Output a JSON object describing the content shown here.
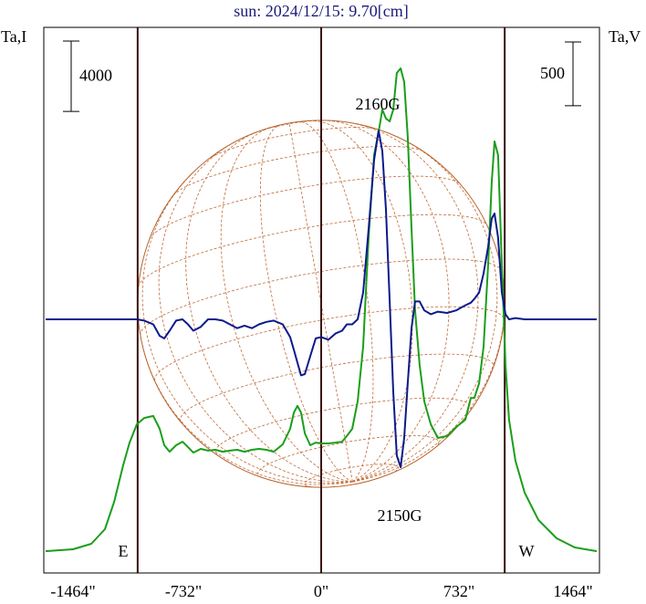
{
  "chart_data": {
    "type": "line",
    "title": "sun: 2024/12/15: 9.70[cm]",
    "x": [
      -1464,
      -1318,
      -1221,
      -1149,
      -1100,
      -1052,
      -1018,
      -979,
      -940,
      -892,
      -858,
      -834,
      -805,
      -771,
      -737,
      -708,
      -679,
      -640,
      -601,
      -562,
      -523,
      -485,
      -446,
      -407,
      -368,
      -330,
      -291,
      -252,
      -204,
      -165,
      -145,
      -126,
      -107,
      -87,
      -58,
      -29,
      0,
      39,
      78,
      111,
      136,
      165,
      194,
      223,
      252,
      281,
      305,
      325,
      344,
      364,
      383,
      402,
      422,
      441,
      460,
      480,
      499,
      523,
      548,
      582,
      620,
      669,
      717,
      766,
      795,
      814,
      839,
      863,
      887,
      906,
      921,
      940,
      960,
      979,
      998,
      1032,
      1081,
      1154,
      1251,
      1347,
      1464
    ],
    "series": [
      {
        "name": "Ta,I",
        "color": "#1a9e1a",
        "values": [
          240,
          350,
          660,
          1490,
          3040,
          5120,
          6410,
          7450,
          7810,
          7920,
          7190,
          6260,
          5890,
          6260,
          6460,
          6150,
          5840,
          6050,
          5950,
          6000,
          5890,
          5950,
          6000,
          5890,
          6000,
          6050,
          6000,
          5890,
          6310,
          7190,
          8120,
          8490,
          8120,
          6930,
          6260,
          6410,
          6360,
          6360,
          6410,
          6460,
          6780,
          7190,
          8750,
          11860,
          18080,
          22740,
          24040,
          25330,
          24820,
          24660,
          25330,
          27410,
          27670,
          26890,
          23780,
          18600,
          13930,
          10820,
          8750,
          7450,
          6670,
          6780,
          7290,
          7710,
          8950,
          8950,
          9780,
          11860,
          16520,
          21190,
          23520,
          22740,
          16520,
          10820,
          7710,
          5380,
          3560,
          2010,
          970,
          450,
          240
        ]
      },
      {
        "name": "Ta,V",
        "color": "#0c1a8c",
        "axis": "y2",
        "values": [
          0,
          0,
          0,
          0,
          0,
          0,
          0,
          0,
          -10,
          -40,
          -130,
          -150,
          -90,
          -10,
          0,
          -40,
          -90,
          -60,
          0,
          0,
          -10,
          -40,
          -70,
          -50,
          -70,
          -40,
          -20,
          -10,
          -40,
          -140,
          -240,
          -340,
          -440,
          -430,
          -290,
          -150,
          -140,
          -160,
          -110,
          -90,
          -40,
          -40,
          0,
          210,
          710,
          1250,
          1480,
          1320,
          860,
          140,
          -570,
          -1070,
          -1160,
          -930,
          -500,
          -70,
          140,
          140,
          70,
          40,
          60,
          50,
          70,
          110,
          130,
          160,
          210,
          360,
          570,
          790,
          830,
          640,
          210,
          40,
          0,
          10,
          0,
          0,
          0,
          0,
          0
        ]
      }
    ],
    "xlim": [
      -1464,
      1464
    ],
    "xticks": [
      {
        "value": -1464,
        "label": "-1464\""
      },
      {
        "value": -732,
        "label": "-732\""
      },
      {
        "value": 0,
        "label": "0\""
      },
      {
        "value": 732,
        "label": "732\""
      },
      {
        "value": 1464,
        "label": "1464\""
      }
    ],
    "ylim": [
      -1000,
      30000
    ],
    "y2lim": [
      -1990,
      2290
    ],
    "scale_bars": [
      4000,
      500
    ],
    "vlines": [
      -975,
      0,
      975
    ],
    "annotations": [
      "2160G",
      "2150G",
      "E",
      "W"
    ]
  }
}
